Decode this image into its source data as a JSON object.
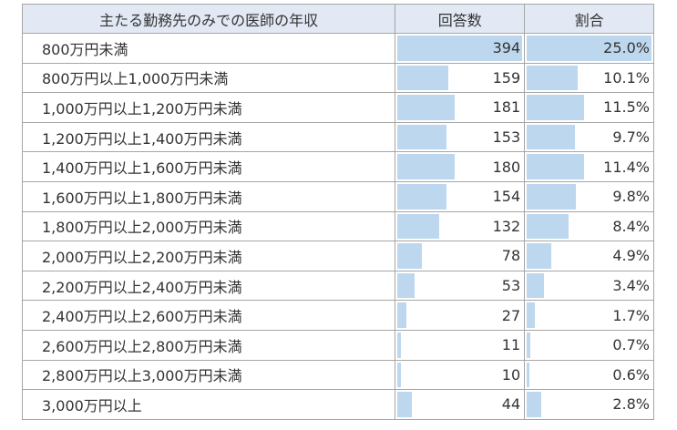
{
  "headers": [
    "主たる勤務先のみでの医師の年収",
    "回答数",
    "割合"
  ],
  "colors": {
    "bar": "#bdd7ee",
    "header_bg": "#e2e9f4"
  },
  "rows": [
    {
      "label": "800万円未満",
      "count": "394",
      "pct": "25.0%"
    },
    {
      "label": "800万円以上1,000万円未満",
      "count": "159",
      "pct": "10.1%"
    },
    {
      "label": "1,000万円以上1,200万円未満",
      "count": "181",
      "pct": "11.5%"
    },
    {
      "label": "1,200万円以上1,400万円未満",
      "count": "153",
      "pct": "9.7%"
    },
    {
      "label": "1,400万円以上1,600万円未満",
      "count": "180",
      "pct": "11.4%"
    },
    {
      "label": "1,600万円以上1,800万円未満",
      "count": "154",
      "pct": "9.8%"
    },
    {
      "label": "1,800万円以上2,000万円未満",
      "count": "132",
      "pct": "8.4%"
    },
    {
      "label": "2,000万円以上2,200万円未満",
      "count": "78",
      "pct": "4.9%"
    },
    {
      "label": "2,200万円以上2,400万円未満",
      "count": "53",
      "pct": "3.4%"
    },
    {
      "label": "2,400万円以上2,600万円未満",
      "count": "27",
      "pct": "1.7%"
    },
    {
      "label": "2,600万円以上2,800万円未満",
      "count": "11",
      "pct": "0.7%"
    },
    {
      "label": "2,800万円以上3,000万円未満",
      "count": "10",
      "pct": "0.6%"
    },
    {
      "label": "3,000万円以上",
      "count": "44",
      "pct": "2.8%"
    }
  ]
}
